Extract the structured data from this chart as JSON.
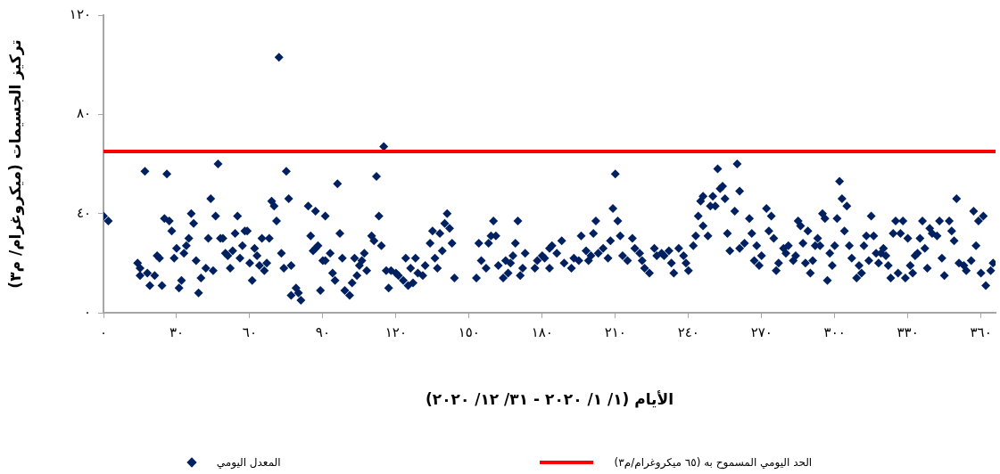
{
  "chart_data": {
    "type": "scatter",
    "xlabel": "الأيام (١/ ١/ ٢٠٢٠ - ٣١/ ١٢/ ٢٠٢٠)",
    "ylabel": "تركيز الجسيمات (ميكروغرام/ م٣)",
    "xlim": [
      0,
      366
    ],
    "xticks": [
      {
        "value": 0,
        "label": "٠"
      },
      {
        "value": 30,
        "label": "٣٠"
      },
      {
        "value": 60,
        "label": "٦٠"
      },
      {
        "value": 90,
        "label": "٩٠"
      },
      {
        "value": 120,
        "label": "١٢٠"
      },
      {
        "value": 150,
        "label": "١٥٠"
      },
      {
        "value": 180,
        "label": "١٨٠"
      },
      {
        "value": 210,
        "label": "٢١٠"
      },
      {
        "value": 240,
        "label": "٢٤٠"
      },
      {
        "value": 270,
        "label": "٢٧٠"
      },
      {
        "value": 300,
        "label": "٣٠٠"
      },
      {
        "value": 330,
        "label": "٣٣٠"
      },
      {
        "value": 360,
        "label": "٣٦٠"
      }
    ],
    "ylim": [
      0,
      120
    ],
    "yticks": [
      {
        "value": 0,
        "label": "٠"
      },
      {
        "value": 40,
        "label": "٤٠"
      },
      {
        "value": 80,
        "label": "٨٠"
      },
      {
        "value": 120,
        "label": "١٢٠"
      }
    ],
    "grid": false,
    "legend": "bottom",
    "marker": "diamond",
    "ref_lines": [
      {
        "axis": "y",
        "value": 65,
        "label": "الحد اليومي المسموح به (٦٥ ميكروغرام/م٣)",
        "color": "#ff0000"
      }
    ],
    "series": [
      {
        "name": "المعدل اليومي",
        "color": "#002060",
        "x": [
          0,
          2,
          14,
          15,
          15,
          17,
          18,
          19,
          21,
          22,
          23,
          24,
          26,
          25,
          27,
          28,
          29,
          30,
          31,
          32,
          33,
          34,
          35,
          36,
          37,
          38,
          39,
          40,
          42,
          43,
          44,
          45,
          46,
          47,
          48,
          49,
          50,
          51,
          52,
          53,
          54,
          55,
          56,
          57,
          58,
          59,
          60,
          61,
          62,
          63,
          64,
          65,
          66,
          67,
          68,
          69,
          70,
          71,
          72,
          73,
          74,
          75,
          76,
          77,
          79,
          77,
          80,
          81,
          84,
          85,
          86,
          87,
          87,
          88,
          89,
          90,
          91,
          91,
          93,
          94,
          95,
          96,
          97,
          98,
          99,
          101,
          102,
          103,
          104,
          105,
          106,
          107,
          108,
          110,
          111,
          112,
          113,
          114,
          115,
          116,
          117,
          118,
          120,
          121,
          123,
          124,
          125,
          126,
          127,
          128,
          129,
          131,
          132,
          134,
          135,
          136,
          137,
          138,
          139,
          140,
          141,
          142,
          143,
          144,
          153,
          154,
          155,
          157,
          158,
          159,
          160,
          161,
          162,
          164,
          165,
          166,
          167,
          168,
          169,
          170,
          171,
          172,
          173,
          177,
          178,
          180,
          181,
          183,
          183,
          184,
          186,
          188,
          189,
          192,
          193,
          195,
          196,
          198,
          199,
          200,
          201,
          202,
          203,
          205,
          207,
          208,
          209,
          210,
          211,
          212,
          213,
          215,
          217,
          218,
          220,
          221,
          222,
          224,
          226,
          227,
          229,
          230,
          232,
          233,
          234,
          236,
          238,
          239,
          240,
          242,
          243,
          244,
          246,
          245,
          246,
          248,
          249,
          250,
          251,
          252,
          253,
          254,
          255,
          256,
          257,
          259,
          260,
          261,
          261,
          263,
          265,
          266,
          267,
          268,
          269,
          270,
          272,
          273,
          274,
          275,
          276,
          277,
          279,
          281,
          280,
          283,
          284,
          285,
          286,
          287,
          288,
          289,
          290,
          291,
          292,
          293,
          294,
          295,
          296,
          297,
          298,
          299,
          300,
          301,
          302,
          303,
          305,
          304,
          306,
          307,
          309,
          310,
          311,
          312,
          313,
          314,
          315,
          316,
          317,
          318,
          319,
          320,
          321,
          322,
          323,
          324,
          325,
          326,
          327,
          328,
          329,
          330,
          331,
          332,
          333,
          334,
          335,
          336,
          337,
          338,
          339,
          340,
          342,
          343,
          344,
          345,
          347,
          348,
          349,
          350,
          351,
          353,
          354,
          356,
          357,
          358,
          359,
          361,
          360,
          362,
          364,
          365
        ],
        "values": [
          39,
          37,
          20,
          18,
          15,
          57,
          16,
          11,
          15,
          23,
          22,
          11,
          56,
          38,
          37,
          33,
          22,
          26,
          10,
          13,
          24,
          27,
          30,
          40,
          36,
          21,
          8,
          14,
          18,
          30,
          46,
          17,
          39,
          60,
          30,
          30,
          24,
          23,
          18,
          25,
          32,
          39,
          22,
          27,
          33,
          33,
          20,
          13,
          26,
          23,
          19,
          30,
          17,
          20,
          30,
          45,
          43,
          37,
          103,
          24,
          18,
          57,
          46,
          19,
          10,
          7,
          8,
          5,
          43,
          31,
          25,
          41,
          26,
          27,
          9,
          21,
          39,
          21,
          24,
          16,
          13,
          52,
          32,
          22,
          9,
          7,
          12,
          22,
          15,
          19,
          21,
          24,
          17,
          31,
          29,
          55,
          39,
          27,
          67,
          17,
          10,
          17,
          16,
          15,
          13,
          22,
          11,
          18,
          12,
          22,
          16,
          15,
          19,
          28,
          33,
          22,
          18,
          32,
          25,
          36,
          40,
          34,
          28,
          14,
          14,
          28,
          21,
          18,
          28,
          31,
          37,
          31,
          19,
          14,
          21,
          16,
          20,
          23,
          28,
          37,
          15,
          18,
          24,
          18,
          21,
          23,
          22,
          18,
          26,
          27,
          24,
          29,
          20,
          18,
          22,
          21,
          31,
          25,
          21,
          23,
          32,
          37,
          24,
          26,
          22,
          29,
          42,
          56,
          37,
          31,
          23,
          21,
          30,
          26,
          24,
          21,
          18,
          16,
          26,
          23,
          24,
          23,
          25,
          20,
          16,
          26,
          23,
          20,
          17,
          27,
          31,
          39,
          35,
          45,
          47,
          31,
          43,
          47,
          43,
          58,
          50,
          51,
          46,
          32,
          25,
          41,
          60,
          49,
          26,
          28,
          38,
          32,
          21,
          27,
          19,
          23,
          42,
          33,
          39,
          30,
          17,
          20,
          26,
          27,
          24,
          21,
          23,
          37,
          35,
          28,
          20,
          33,
          16,
          21,
          27,
          30,
          27,
          40,
          38,
          13,
          24,
          19,
          27,
          38,
          53,
          46,
          43,
          33,
          27,
          22,
          14,
          19,
          16,
          27,
          31,
          21,
          39,
          31,
          24,
          20,
          24,
          26,
          23,
          19,
          14,
          32,
          37,
          16,
          32,
          37,
          14,
          30,
          19,
          16,
          23,
          24,
          30,
          37,
          26,
          18,
          34,
          32,
          31,
          37,
          22,
          15,
          37,
          33,
          29,
          46,
          20,
          19,
          17,
          21,
          41,
          27,
          37,
          39,
          16,
          11,
          17,
          20
        ]
      }
    ]
  }
}
